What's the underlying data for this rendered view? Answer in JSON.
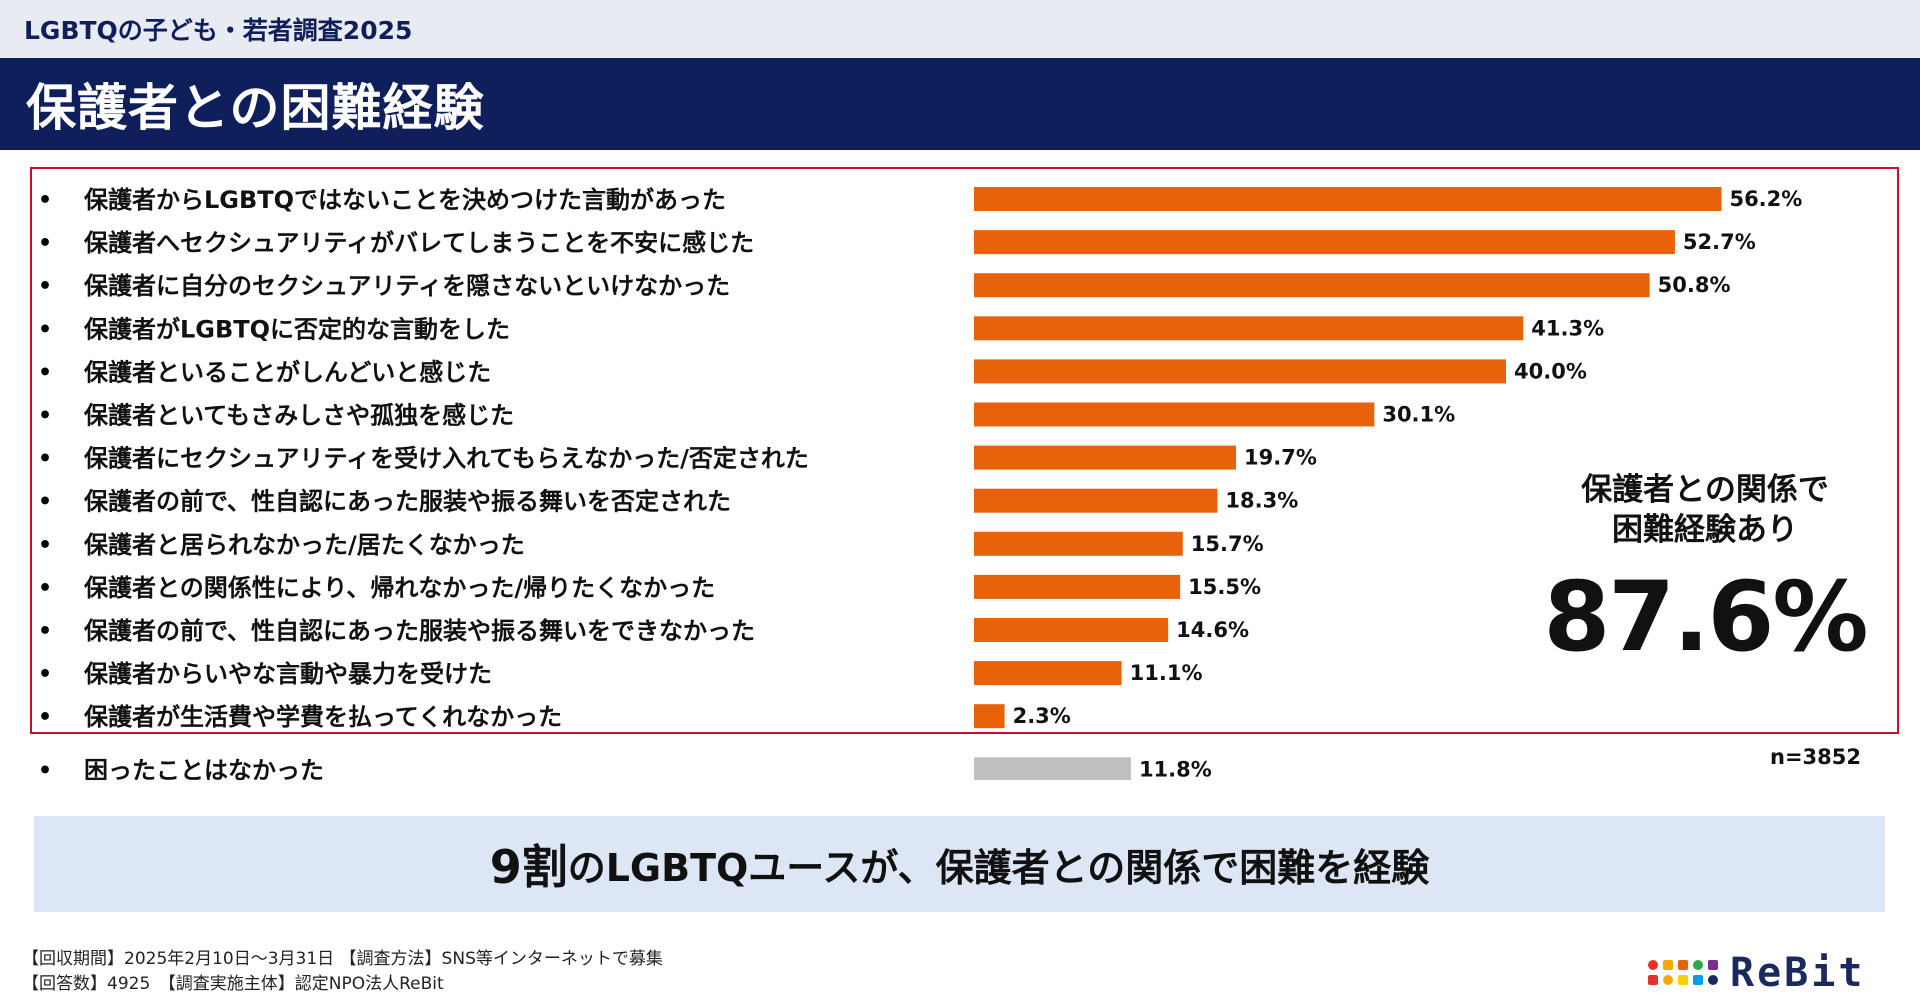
{
  "header": {
    "survey_label": "LGBTQの子ども・若者調査2025",
    "title": "保護者との困難経験"
  },
  "chart_data": {
    "type": "bar",
    "orientation": "horizontal",
    "categories": [
      "保護者からLGBTQではないことを決めつけた言動があった",
      "保護者へセクシュアリティがバレてしまうことを不安に感じた",
      "保護者に自分のセクシュアリティを隠さないといけなかった",
      "保護者がLGBTQに否定的な言動をした",
      "保護者といることがしんどいと感じた",
      "保護者といてもさみしさや孤独を感じた",
      "保護者にセクシュアリティを受け入れてもらえなかった/否定された",
      "保護者の前で、性自認にあった服装や振る舞いを否定された",
      "保護者と居られなかった/居たくなかった",
      "保護者との関係性により、帰れなかった/帰りたくなかった",
      "保護者の前で、性自認にあった服装や振る舞いをできなかった",
      "保護者からいやな言動や暴力を受けた",
      "保護者が生活費や学費を払ってくれなかった",
      "困ったことはなかった"
    ],
    "values": [
      56.2,
      52.7,
      50.8,
      41.3,
      40.0,
      30.1,
      19.7,
      18.3,
      15.7,
      15.5,
      14.6,
      11.1,
      2.3,
      11.8
    ],
    "value_labels": [
      "56.2%",
      "52.7%",
      "50.8%",
      "41.3%",
      "40.0%",
      "30.1%",
      "19.7%",
      "18.3%",
      "15.7%",
      "15.5%",
      "14.6%",
      "11.1%",
      "2.3%",
      "11.8%"
    ],
    "bar_colors": [
      "#e8620a",
      "#e8620a",
      "#e8620a",
      "#e8620a",
      "#e8620a",
      "#e8620a",
      "#e8620a",
      "#e8620a",
      "#e8620a",
      "#e8620a",
      "#e8620a",
      "#e8620a",
      "#e8620a",
      "#bfbfbf"
    ],
    "unit": "%",
    "xlim": [
      0,
      100
    ],
    "grid": false,
    "bullet": "•",
    "n_label": "n=3852"
  },
  "callout": {
    "line1": "保護者との関係で",
    "line2": "困難経験あり",
    "value": "87.6%"
  },
  "summary": {
    "big": "9割",
    "rest": "のLGBTQユースが、保護者との関係で困難を経験"
  },
  "footer": {
    "line1": "【回収期間】2025年2月10日〜3月31日 【調査方法】SNS等インターネットで募集",
    "line2": "【回答数】4925　【調査実施主体】認定NPO法人ReBit"
  },
  "logo": {
    "text": "ReBit",
    "dot_colors": [
      "#e63329",
      "#f7a800",
      "#e8620a",
      "#2ba84a",
      "#7b2f8e",
      "#e63329",
      "#f7a800",
      "#f7d000",
      "#00a0e9",
      "#1a2a5e"
    ]
  },
  "colors": {
    "navy": "#0f1f5c",
    "accent_border": "#c8102e",
    "bar": "#e8620a",
    "bar_none": "#bfbfbf",
    "summary_bg": "#dde6f5"
  }
}
